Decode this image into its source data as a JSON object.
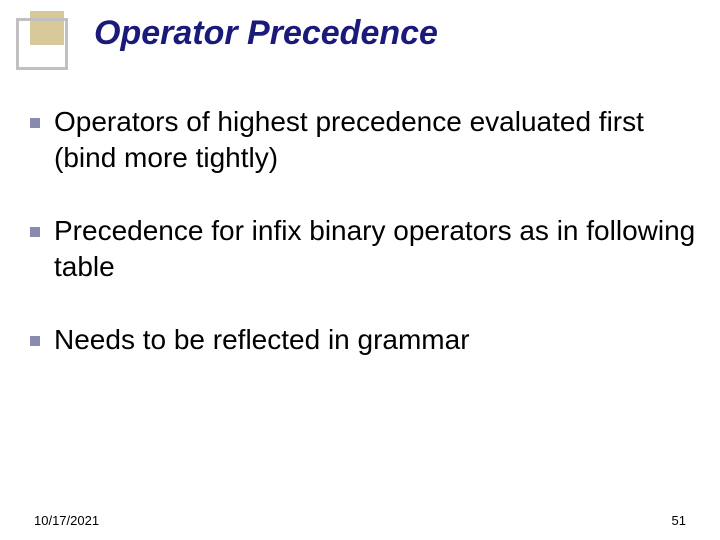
{
  "slide": {
    "title": "Operator Precedence",
    "title_color": "#1a1a7a",
    "title_fontsize": 34,
    "title_fontstyle": "italic",
    "background_color": "#ffffff",
    "decoration": {
      "outer_border_color": "#c0c0c0",
      "outer_size": 52,
      "inner_fill_color": "#d8c89a",
      "inner_size": 34
    },
    "bullets": [
      {
        "text": "Operators of highest precedence evaluated first (bind more tightly)"
      },
      {
        "text": "Precedence for infix binary operators as in following table"
      },
      {
        "text": "Needs to be reflected in grammar"
      }
    ],
    "bullet_marker_color": "#8a8ab0",
    "bullet_fontsize": 28,
    "bullet_text_color": "#000000",
    "footer": {
      "date": "10/17/2021",
      "page": "51",
      "fontsize": 13,
      "color": "#000000"
    }
  }
}
